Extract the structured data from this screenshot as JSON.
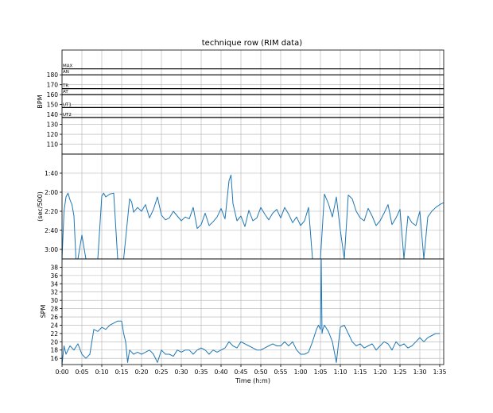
{
  "chart_data": [
    {
      "type": "line",
      "panel": "heart-rate",
      "title": "technique row (RIM data)",
      "ylabel": "BPM",
      "ylim": [
        100,
        205
      ],
      "yticks": [
        {
          "v": 110,
          "label": "110"
        },
        {
          "v": 120,
          "label": "120"
        },
        {
          "v": 130,
          "label": "130"
        },
        {
          "v": 140,
          "label": "140"
        },
        {
          "v": 150,
          "label": "150"
        },
        {
          "v": 160,
          "label": "160"
        },
        {
          "v": 170,
          "label": "170"
        },
        {
          "v": 180,
          "label": "180"
        }
      ],
      "zones": [
        {
          "label": "MAX",
          "value": 186
        },
        {
          "label": "AN",
          "value": 180
        },
        {
          "label": "TR",
          "value": 166
        },
        {
          "label": "AT",
          "value": 160
        },
        {
          "label": "UT1",
          "value": 147
        },
        {
          "label": "UT2",
          "value": 137
        }
      ],
      "grid": true,
      "series": []
    },
    {
      "type": "line",
      "panel": "pace",
      "ylabel": "(sec/500)",
      "ylim_seconds": [
        190,
        80
      ],
      "yticks": [
        {
          "v": 100,
          "label": "1:40"
        },
        {
          "v": 120,
          "label": "2:00"
        },
        {
          "v": 140,
          "label": "2:20"
        },
        {
          "v": 160,
          "label": "2:40"
        },
        {
          "v": 180,
          "label": "3:00"
        }
      ],
      "grid": true,
      "series": [
        {
          "color": "#1f77b4",
          "x_min": [
            0,
            0.5,
            1,
            1.5,
            2,
            2.5,
            3,
            3.5,
            4,
            5,
            6,
            7,
            8,
            9,
            10,
            10.5,
            11,
            12,
            13,
            14,
            15,
            15.5,
            17,
            17.5,
            18,
            19,
            20,
            21,
            22,
            23,
            24,
            25,
            26,
            27,
            28,
            29,
            30,
            31,
            32,
            33,
            34,
            35,
            36,
            37,
            38,
            39,
            40,
            41,
            42,
            42.5,
            43,
            44,
            45,
            46,
            47,
            48,
            49,
            50,
            51,
            52,
            53,
            54,
            55,
            56,
            57,
            58,
            59,
            60,
            61,
            62,
            63,
            64,
            65,
            66,
            67,
            68,
            69,
            70,
            71,
            72,
            73,
            74,
            75,
            76,
            77,
            78,
            79,
            80,
            81,
            82,
            83,
            84,
            85,
            86,
            87,
            88,
            89,
            90,
            91,
            92,
            93,
            94,
            95,
            96
          ],
          "y_sec": [
            190,
            140,
            125,
            121,
            128,
            133,
            145,
            190,
            190,
            165,
            190,
            190,
            190,
            190,
            124,
            121,
            125,
            122,
            121,
            190,
            190,
            190,
            127,
            130,
            141,
            136,
            140,
            133,
            147,
            138,
            125,
            144,
            149,
            147,
            140,
            145,
            150,
            146,
            148,
            136,
            158,
            154,
            142,
            155,
            151,
            146,
            137,
            148,
            108,
            102,
            132,
            150,
            145,
            156,
            139,
            150,
            147,
            136,
            143,
            149,
            142,
            138,
            147,
            136,
            143,
            152,
            146,
            155,
            150,
            136,
            190,
            190,
            190,
            122,
            132,
            146,
            125,
            160,
            190,
            123,
            127,
            140,
            147,
            150,
            137,
            145,
            155,
            150,
            142,
            133,
            154,
            147,
            138,
            190,
            145,
            152,
            155,
            140,
            190,
            146,
            140,
            136,
            133,
            131
          ]
        }
      ]
    },
    {
      "type": "line",
      "panel": "stroke-rate",
      "ylabel": "SPM",
      "xlabel": "Time (h:m)",
      "ylim": [
        14.5,
        40
      ],
      "yticks": [
        16,
        18,
        20,
        22,
        24,
        26,
        28,
        30,
        32,
        34,
        36,
        38
      ],
      "xlim_min": [
        0,
        96
      ],
      "xticks": [
        {
          "v": 0,
          "label": "0:00"
        },
        {
          "v": 5,
          "label": "0:05"
        },
        {
          "v": 10,
          "label": "0:10"
        },
        {
          "v": 15,
          "label": "0:15"
        },
        {
          "v": 20,
          "label": "0:20"
        },
        {
          "v": 25,
          "label": "0:25"
        },
        {
          "v": 30,
          "label": "0:30"
        },
        {
          "v": 35,
          "label": "0:35"
        },
        {
          "v": 40,
          "label": "0:40"
        },
        {
          "v": 45,
          "label": "0:45"
        },
        {
          "v": 50,
          "label": "0:50"
        },
        {
          "v": 55,
          "label": "0:55"
        },
        {
          "v": 60,
          "label": "1:00"
        },
        {
          "v": 65,
          "label": "1:05"
        },
        {
          "v": 70,
          "label": "1:10"
        },
        {
          "v": 75,
          "label": "1:15"
        },
        {
          "v": 80,
          "label": "1:20"
        },
        {
          "v": 85,
          "label": "1:25"
        },
        {
          "v": 90,
          "label": "1:30"
        },
        {
          "v": 95,
          "label": "1:35"
        }
      ],
      "grid": true,
      "series": [
        {
          "color": "#1f77b4",
          "x_min": [
            0,
            0.5,
            1,
            1.5,
            2,
            3,
            4,
            5,
            6,
            7,
            8,
            9,
            10,
            11,
            12,
            13,
            14,
            14.5,
            15,
            15.5,
            16,
            16.5,
            17,
            18,
            19,
            20,
            21,
            22,
            23,
            24,
            25,
            26,
            27,
            28,
            29,
            30,
            31,
            32,
            33,
            34,
            35,
            36,
            37,
            38,
            39,
            40,
            41,
            42,
            43,
            44,
            45,
            46,
            47,
            48,
            49,
            50,
            51,
            52,
            53,
            54,
            55,
            56,
            57,
            58,
            59,
            60,
            61,
            62,
            63,
            64,
            64.5,
            65,
            65.2,
            65.4,
            65.6,
            66,
            67,
            68,
            69,
            70,
            71,
            72,
            73,
            74,
            75,
            76,
            77,
            78,
            79,
            80,
            81,
            82,
            83,
            84,
            85,
            86,
            87,
            88,
            89,
            90,
            91,
            92,
            93,
            94,
            95,
            96
          ],
          "y": [
            14.5,
            19,
            17,
            18,
            19,
            18,
            19.5,
            17,
            16,
            17,
            23,
            22.5,
            23.5,
            23,
            24,
            24.5,
            25,
            25,
            25,
            22,
            20,
            15,
            18,
            17,
            17.5,
            17,
            17.5,
            18,
            17,
            15,
            18,
            17,
            17,
            16.5,
            18,
            17.5,
            18,
            18,
            17,
            18,
            18.5,
            18,
            17,
            18,
            17.5,
            18,
            18.5,
            20,
            19,
            18.5,
            20,
            19.5,
            19,
            18.5,
            18,
            18,
            18.5,
            19,
            19.5,
            19,
            19,
            20,
            19,
            20,
            18,
            17,
            17,
            17.5,
            20,
            23,
            24,
            23,
            40,
            22,
            23,
            24,
            22.5,
            20,
            15,
            23.5,
            24,
            22,
            20,
            19,
            19.5,
            18.5,
            19,
            19.5,
            18,
            19,
            20,
            19.5,
            18,
            20,
            19,
            19.5,
            18.5,
            19,
            20,
            21,
            20,
            21,
            21.5,
            22,
            22
          ]
        }
      ]
    }
  ]
}
